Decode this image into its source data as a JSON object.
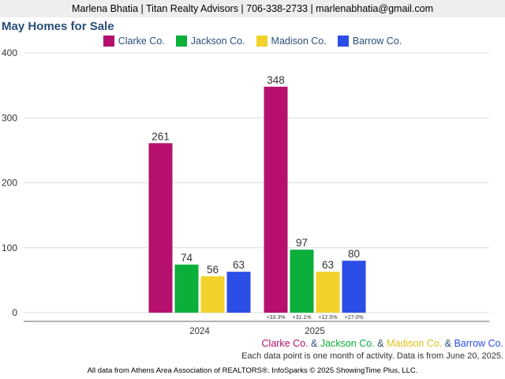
{
  "header": {
    "contact": "Marlena Bhatia | Titan Realty Advisors | 706-338-2733 | marlenabhatia@gmail.com"
  },
  "chart_data": {
    "type": "bar",
    "title": "May Homes for Sale",
    "categories": [
      "2024",
      "2025"
    ],
    "series": [
      {
        "name": "Clarke Co.",
        "color": "#b5106d",
        "values": [
          261,
          348
        ]
      },
      {
        "name": "Jackson Co.",
        "color": "#0caf3a",
        "values": [
          74,
          97
        ]
      },
      {
        "name": "Madison Co.",
        "color": "#f2d22a",
        "values": [
          56,
          63
        ]
      },
      {
        "name": "Barrow Co.",
        "color": "#2a4ee6",
        "values": [
          63,
          80
        ]
      }
    ],
    "yticks": [
      0,
      100,
      200,
      300,
      400
    ],
    "ylim": [
      0,
      400
    ],
    "grid": true,
    "legend_position": "top",
    "change_labels": [
      "+33.3%",
      "+31.1%",
      "+12.5%",
      "+27.0%"
    ]
  },
  "notes": {
    "legend_series": [
      "Clarke Co.",
      "Jackson Co.",
      "Madison Co.",
      "Barrow Co."
    ],
    "separator": "&",
    "activity_note": "Each data point is one month of activity. Data is from June 20, 2025."
  },
  "footer": {
    "source": "All data from Athens Area Association of REALTORS®. InfoSparks © 2025 ShowingTime Plus, LLC."
  }
}
